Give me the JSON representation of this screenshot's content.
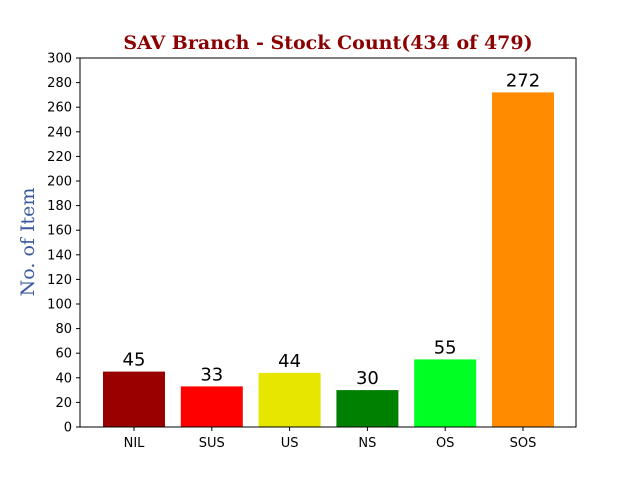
{
  "chart_data": {
    "type": "bar",
    "title": "SAV Branch - Stock Count(434 of 479)",
    "xlabel": "",
    "ylabel": "No. of Item",
    "categories": [
      "NIL",
      "SUS",
      "US",
      "NS",
      "OS",
      "SOS"
    ],
    "values": [
      45,
      33,
      44,
      30,
      55,
      272
    ],
    "data_labels": [
      "45",
      "33",
      "44",
      "30",
      "55",
      "272"
    ],
    "bar_colors": [
      "#990000",
      "#ff0000",
      "#e6e600",
      "#008000",
      "#00ff22",
      "#ff8c00"
    ],
    "ylim": [
      0,
      300
    ],
    "yticks": [
      0,
      20,
      40,
      60,
      80,
      100,
      120,
      140,
      160,
      180,
      200,
      220,
      240,
      260,
      280,
      300
    ],
    "grid": false,
    "legend": "none"
  },
  "colors": {
    "title": "#8b0000",
    "ylabel": "#3a5a9c",
    "axis": "#000000"
  }
}
